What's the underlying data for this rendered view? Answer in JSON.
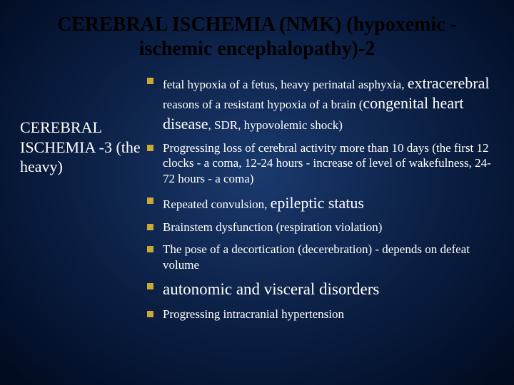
{
  "title": "CEREBRAL ISCHEMIA (NMK) (hypoxemic - ischemic encephalopathy)-2",
  "sidebar": "CEREBRAL ISCHEMIA -3 (the heavy)",
  "bullets": {
    "b1_a": "fetal hypoxia of a fetus, heavy perinatal asphyxia, ",
    "b1_b": "extracerebral",
    "b1_c": " reasons of a resistant hypoxia of a brain (",
    "b1_d": "congenital heart disease",
    "b1_e": ", SDR, hypovolemic shock)",
    "b2": "Progressing loss of cerebral activity more than 10 days (the first 12 clocks - a coma, 12-24 hours - increase of level of wakefulness, 24-72 hours - a coma)",
    "b3_a": "Repeated convulsion, ",
    "b3_b": "epileptic status",
    "b4": "Brainstem dysfunction (respiration violation)",
    "b5": "The pose of a decortication (decerebration) - depends on defeat volume",
    "b6": "autonomic and visceral disorders",
    "b7": "Progressing intracranial hypertension"
  },
  "colors": {
    "bullet_square": "#c9a933",
    "title_color": "#000000",
    "text_color": "#ffffff"
  }
}
